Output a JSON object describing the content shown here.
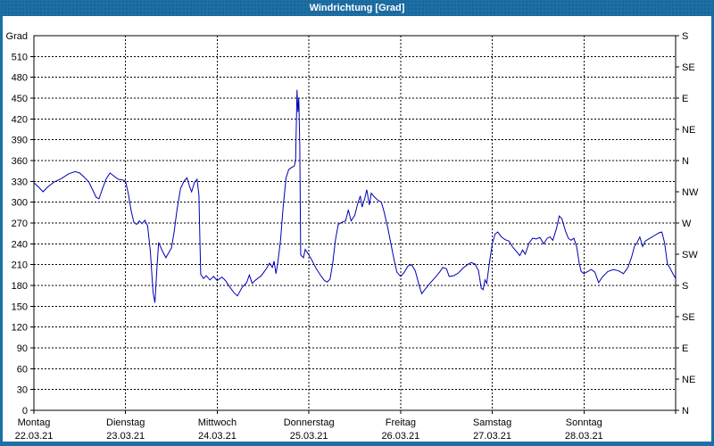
{
  "window": {
    "title": "Windrichtung [Grad]"
  },
  "colors": {
    "frame": "#1d6fa5",
    "title_text": "#ffffff",
    "plot_background": "#ffffff",
    "axis_and_grid": "#000000",
    "series_line": "#0000b4"
  },
  "chart_data": {
    "type": "line",
    "title": "Windrichtung [Grad]",
    "grid": "dashed",
    "legend": "none",
    "y_axis_left": {
      "unit_label": "Grad",
      "min": 0,
      "max": 540,
      "tick_step": 30,
      "tick_values": [
        0,
        30,
        60,
        90,
        120,
        150,
        180,
        210,
        240,
        270,
        300,
        330,
        360,
        390,
        420,
        450,
        480,
        510
      ]
    },
    "y_axis_right": {
      "ticks": [
        {
          "value": 0,
          "label": "N"
        },
        {
          "value": 45,
          "label": "NE"
        },
        {
          "value": 90,
          "label": "E"
        },
        {
          "value": 135,
          "label": "SE"
        },
        {
          "value": 180,
          "label": "S"
        },
        {
          "value": 225,
          "label": "SW"
        },
        {
          "value": 270,
          "label": "W"
        },
        {
          "value": 315,
          "label": "NW"
        },
        {
          "value": 360,
          "label": "N"
        },
        {
          "value": 405,
          "label": "NE"
        },
        {
          "value": 450,
          "label": "E"
        },
        {
          "value": 495,
          "label": "SE"
        },
        {
          "value": 540,
          "label": "S"
        }
      ]
    },
    "x_axis": {
      "min_day": 0,
      "max_day": 7,
      "days": [
        {
          "name": "Montag",
          "date": "22.03.21"
        },
        {
          "name": "Dienstag",
          "date": "23.03.21"
        },
        {
          "name": "Mittwoch",
          "date": "24.03.21"
        },
        {
          "name": "Donnerstag",
          "date": "25.03.21"
        },
        {
          "name": "Freitag",
          "date": "26.03.21"
        },
        {
          "name": "Samstag",
          "date": "27.03.21"
        },
        {
          "name": "Sonntag",
          "date": "28.03.21"
        }
      ]
    },
    "series": [
      {
        "name": "Windrichtung",
        "color": "#0000b4",
        "points": [
          [
            0.0,
            328
          ],
          [
            0.05,
            322
          ],
          [
            0.1,
            315
          ],
          [
            0.15,
            322
          ],
          [
            0.22,
            329
          ],
          [
            0.3,
            334
          ],
          [
            0.38,
            341
          ],
          [
            0.45,
            344
          ],
          [
            0.5,
            342
          ],
          [
            0.55,
            336
          ],
          [
            0.6,
            329
          ],
          [
            0.65,
            315
          ],
          [
            0.68,
            307
          ],
          [
            0.71,
            305
          ],
          [
            0.75,
            320
          ],
          [
            0.79,
            334
          ],
          [
            0.83,
            342
          ],
          [
            0.87,
            338
          ],
          [
            0.92,
            333
          ],
          [
            0.97,
            332
          ],
          [
            1.0,
            330
          ],
          [
            1.03,
            312
          ],
          [
            1.06,
            288
          ],
          [
            1.09,
            271
          ],
          [
            1.12,
            268
          ],
          [
            1.15,
            273
          ],
          [
            1.18,
            269
          ],
          [
            1.21,
            274
          ],
          [
            1.24,
            266
          ],
          [
            1.27,
            230
          ],
          [
            1.3,
            170
          ],
          [
            1.32,
            155
          ],
          [
            1.34,
            200
          ],
          [
            1.36,
            242
          ],
          [
            1.4,
            230
          ],
          [
            1.44,
            220
          ],
          [
            1.47,
            227
          ],
          [
            1.5,
            234
          ],
          [
            1.53,
            258
          ],
          [
            1.56,
            288
          ],
          [
            1.6,
            320
          ],
          [
            1.64,
            331
          ],
          [
            1.67,
            335
          ],
          [
            1.7,
            322
          ],
          [
            1.72,
            315
          ],
          [
            1.75,
            328
          ],
          [
            1.78,
            333
          ],
          [
            1.8,
            310
          ],
          [
            1.81,
            250
          ],
          [
            1.82,
            196
          ],
          [
            1.85,
            190
          ],
          [
            1.88,
            194
          ],
          [
            1.92,
            188
          ],
          [
            1.96,
            193
          ],
          [
            2.0,
            187
          ],
          [
            2.05,
            192
          ],
          [
            2.09,
            187
          ],
          [
            2.13,
            179
          ],
          [
            2.18,
            170
          ],
          [
            2.22,
            165
          ],
          [
            2.27,
            177
          ],
          [
            2.32,
            184
          ],
          [
            2.35,
            195
          ],
          [
            2.38,
            183
          ],
          [
            2.42,
            188
          ],
          [
            2.48,
            194
          ],
          [
            2.53,
            203
          ],
          [
            2.57,
            212
          ],
          [
            2.6,
            206
          ],
          [
            2.62,
            215
          ],
          [
            2.64,
            197
          ],
          [
            2.66,
            212
          ],
          [
            2.69,
            245
          ],
          [
            2.72,
            295
          ],
          [
            2.75,
            335
          ],
          [
            2.78,
            347
          ],
          [
            2.81,
            350
          ],
          [
            2.84,
            352
          ],
          [
            2.855,
            360
          ],
          [
            2.87,
            462
          ],
          [
            2.88,
            430
          ],
          [
            2.89,
            450
          ],
          [
            2.9,
            380
          ],
          [
            2.905,
            300
          ],
          [
            2.91,
            224
          ],
          [
            2.94,
            220
          ],
          [
            2.96,
            232
          ],
          [
            3.0,
            224
          ],
          [
            3.03,
            217
          ],
          [
            3.08,
            204
          ],
          [
            3.13,
            194
          ],
          [
            3.17,
            187
          ],
          [
            3.2,
            185
          ],
          [
            3.23,
            189
          ],
          [
            3.26,
            212
          ],
          [
            3.29,
            246
          ],
          [
            3.32,
            268
          ],
          [
            3.36,
            271
          ],
          [
            3.4,
            273
          ],
          [
            3.43,
            289
          ],
          [
            3.46,
            273
          ],
          [
            3.5,
            281
          ],
          [
            3.53,
            297
          ],
          [
            3.56,
            309
          ],
          [
            3.58,
            293
          ],
          [
            3.61,
            306
          ],
          [
            3.63,
            318
          ],
          [
            3.66,
            296
          ],
          [
            3.68,
            313
          ],
          [
            3.71,
            308
          ],
          [
            3.75,
            303
          ],
          [
            3.79,
            300
          ],
          [
            3.82,
            286
          ],
          [
            3.86,
            263
          ],
          [
            3.9,
            236
          ],
          [
            3.93,
            216
          ],
          [
            3.96,
            199
          ],
          [
            4.0,
            193
          ],
          [
            4.04,
            199
          ],
          [
            4.08,
            208
          ],
          [
            4.12,
            210
          ],
          [
            4.16,
            201
          ],
          [
            4.2,
            181
          ],
          [
            4.23,
            168
          ],
          [
            4.27,
            175
          ],
          [
            4.32,
            183
          ],
          [
            4.38,
            192
          ],
          [
            4.43,
            200
          ],
          [
            4.46,
            206
          ],
          [
            4.5,
            204
          ],
          [
            4.53,
            193
          ],
          [
            4.58,
            194
          ],
          [
            4.63,
            198
          ],
          [
            4.68,
            205
          ],
          [
            4.73,
            210
          ],
          [
            4.77,
            213
          ],
          [
            4.81,
            211
          ],
          [
            4.85,
            201
          ],
          [
            4.88,
            176
          ],
          [
            4.9,
            174
          ],
          [
            4.92,
            188
          ],
          [
            4.94,
            183
          ],
          [
            4.97,
            214
          ],
          [
            5.0,
            240
          ],
          [
            5.03,
            254
          ],
          [
            5.06,
            257
          ],
          [
            5.1,
            250
          ],
          [
            5.14,
            246
          ],
          [
            5.18,
            244
          ],
          [
            5.23,
            234
          ],
          [
            5.27,
            228
          ],
          [
            5.3,
            223
          ],
          [
            5.33,
            231
          ],
          [
            5.36,
            225
          ],
          [
            5.4,
            241
          ],
          [
            5.44,
            248
          ],
          [
            5.48,
            247
          ],
          [
            5.52,
            249
          ],
          [
            5.56,
            240
          ],
          [
            5.6,
            248
          ],
          [
            5.63,
            250
          ],
          [
            5.66,
            245
          ],
          [
            5.7,
            262
          ],
          [
            5.73,
            280
          ],
          [
            5.76,
            276
          ],
          [
            5.8,
            258
          ],
          [
            5.83,
            248
          ],
          [
            5.86,
            245
          ],
          [
            5.89,
            248
          ],
          [
            5.92,
            236
          ],
          [
            5.95,
            211
          ],
          [
            5.97,
            200
          ],
          [
            6.0,
            197
          ],
          [
            6.04,
            200
          ],
          [
            6.08,
            203
          ],
          [
            6.12,
            199
          ],
          [
            6.16,
            184
          ],
          [
            6.2,
            192
          ],
          [
            6.26,
            200
          ],
          [
            6.32,
            203
          ],
          [
            6.38,
            201
          ],
          [
            6.43,
            197
          ],
          [
            6.48,
            206
          ],
          [
            6.52,
            221
          ],
          [
            6.55,
            236
          ],
          [
            6.58,
            242
          ],
          [
            6.61,
            250
          ],
          [
            6.64,
            236
          ],
          [
            6.67,
            244
          ],
          [
            6.72,
            248
          ],
          [
            6.77,
            252
          ],
          [
            6.82,
            256
          ],
          [
            6.85,
            257
          ],
          [
            6.88,
            241
          ],
          [
            6.91,
            211
          ],
          [
            6.94,
            205
          ],
          [
            6.97,
            197
          ],
          [
            7.0,
            190
          ]
        ]
      }
    ]
  }
}
